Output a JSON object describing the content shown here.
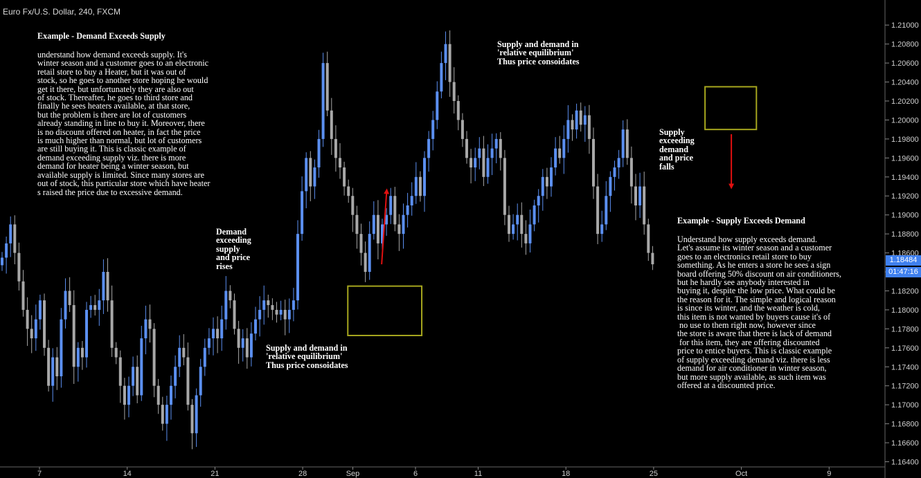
{
  "title": "Euro Fx/U.S. Dollar, 240, FXCM",
  "price_tag": {
    "price": "1.18484",
    "countdown": "01:47:16",
    "color": "#3f80ef"
  },
  "colors": {
    "up_candle": "#5b8ff0",
    "down_candle": "#a8a8a8",
    "box": "#a6a61e",
    "arrow": "#e01010",
    "background": "#000000"
  },
  "chart_data": {
    "type": "candlestick",
    "y_axis": {
      "min": 1.164,
      "max": 1.211,
      "side": "right",
      "ticks": [
        "1.21000",
        "1.20800",
        "1.20600",
        "1.20400",
        "1.20200",
        "1.20000",
        "1.19800",
        "1.19600",
        "1.19400",
        "1.19200",
        "1.19000",
        "1.18800",
        "1.18600",
        "1.18400",
        "1.18200",
        "1.18000",
        "1.17800",
        "1.17600",
        "1.17400",
        "1.17200",
        "1.17000",
        "1.16800",
        "1.16600",
        "1.16400"
      ]
    },
    "x_axis": {
      "labels": [
        {
          "text": "7",
          "day": 0
        },
        {
          "text": "14",
          "day": 7
        },
        {
          "text": "21",
          "day": 14
        },
        {
          "text": "28",
          "day": 21
        },
        {
          "text": "Sep",
          "day": 25
        },
        {
          "text": "6",
          "day": 30
        },
        {
          "text": "11",
          "day": 35
        },
        {
          "text": "18",
          "day": 42
        },
        {
          "text": "25",
          "day": 49
        },
        {
          "text": "Oct",
          "day": 56
        },
        {
          "text": "9",
          "day": 63
        }
      ]
    },
    "series_close": [
      [
        0,
        1.1855
      ],
      [
        1,
        1.187
      ],
      [
        2,
        1.189
      ],
      [
        3,
        1.186
      ],
      [
        4,
        1.183
      ],
      [
        5,
        1.18
      ],
      [
        6,
        1.178
      ],
      [
        7,
        1.177
      ],
      [
        8,
        1.179
      ],
      [
        9,
        1.181
      ],
      [
        10,
        1.176
      ],
      [
        11,
        1.172
      ],
      [
        12,
        1.175
      ],
      [
        13,
        1.173
      ],
      [
        14,
        1.179
      ],
      [
        15,
        1.182
      ],
      [
        16,
        1.1805
      ],
      [
        17,
        1.174
      ],
      [
        18,
        1.176
      ],
      [
        19,
        1.175
      ],
      [
        20,
        1.18
      ],
      [
        21,
        1.1805
      ],
      [
        22,
        1.18
      ],
      [
        23,
        1.181
      ],
      [
        24,
        1.184
      ],
      [
        25,
        1.181
      ],
      [
        26,
        1.176
      ],
      [
        27,
        1.175
      ],
      [
        28,
        1.172
      ],
      [
        29,
        1.17
      ],
      [
        30,
        1.172
      ],
      [
        31,
        1.174
      ],
      [
        32,
        1.171
      ],
      [
        33,
        1.177
      ],
      [
        34,
        1.179
      ],
      [
        35,
        1.178
      ],
      [
        36,
        1.172
      ],
      [
        37,
        1.17
      ],
      [
        38,
        1.168
      ],
      [
        39,
        1.17
      ],
      [
        40,
        1.172
      ],
      [
        41,
        1.174
      ],
      [
        42,
        1.176
      ],
      [
        43,
        1.175
      ],
      [
        44,
        1.17
      ],
      [
        45,
        1.167
      ],
      [
        46,
        1.171
      ],
      [
        47,
        1.174
      ],
      [
        48,
        1.176
      ],
      [
        49,
        1.177
      ],
      [
        50,
        1.178
      ],
      [
        51,
        1.177
      ],
      [
        52,
        1.179
      ],
      [
        53,
        1.182
      ],
      [
        54,
        1.181
      ],
      [
        55,
        1.178
      ],
      [
        56,
        1.176
      ],
      [
        57,
        1.177
      ],
      [
        58,
        1.175
      ],
      [
        59,
        1.1775
      ],
      [
        60,
        1.179
      ],
      [
        61,
        1.18
      ],
      [
        62,
        1.181
      ],
      [
        63,
        1.1805
      ],
      [
        64,
        1.18
      ],
      [
        65,
        1.1795
      ],
      [
        66,
        1.18
      ],
      [
        67,
        1.179
      ],
      [
        68,
        1.18
      ],
      [
        69,
        1.181
      ],
      [
        70,
        1.188
      ],
      [
        71,
        1.1925
      ],
      [
        72,
        1.196
      ],
      [
        73,
        1.193
      ],
      [
        74,
        1.195
      ],
      [
        75,
        1.198
      ],
      [
        76,
        1.206
      ],
      [
        77,
        1.201
      ],
      [
        78,
        1.198
      ],
      [
        79,
        1.196
      ],
      [
        80,
        1.195
      ],
      [
        81,
        1.193
      ],
      [
        82,
        1.192
      ],
      [
        83,
        1.19
      ],
      [
        84,
        1.188
      ],
      [
        85,
        1.186
      ],
      [
        86,
        1.184
      ],
      [
        87,
        1.188
      ],
      [
        88,
        1.19
      ],
      [
        89,
        1.187
      ],
      [
        90,
        1.189
      ],
      [
        91,
        1.19
      ],
      [
        92,
        1.192
      ],
      [
        93,
        1.189
      ],
      [
        94,
        1.188
      ],
      [
        95,
        1.19
      ],
      [
        96,
        1.191
      ],
      [
        97,
        1.192
      ],
      [
        98,
        1.194
      ],
      [
        99,
        1.192
      ],
      [
        100,
        1.196
      ],
      [
        101,
        1.198
      ],
      [
        102,
        1.2
      ],
      [
        103,
        1.203
      ],
      [
        104,
        1.206
      ],
      [
        105,
        1.208
      ],
      [
        106,
        1.204
      ],
      [
        107,
        1.202
      ],
      [
        108,
        1.2
      ],
      [
        109,
        1.198
      ],
      [
        110,
        1.196
      ],
      [
        111,
        1.195
      ],
      [
        112,
        1.196
      ],
      [
        113,
        1.197
      ],
      [
        114,
        1.194
      ],
      [
        115,
        1.196
      ],
      [
        116,
        1.197
      ],
      [
        117,
        1.198
      ],
      [
        118,
        1.196
      ],
      [
        119,
        1.19
      ],
      [
        120,
        1.188
      ],
      [
        121,
        1.189
      ],
      [
        122,
        1.19
      ],
      [
        123,
        1.188
      ],
      [
        124,
        1.187
      ],
      [
        125,
        1.189
      ],
      [
        126,
        1.191
      ],
      [
        127,
        1.192
      ],
      [
        128,
        1.194
      ],
      [
        129,
        1.193
      ],
      [
        130,
        1.195
      ],
      [
        131,
        1.197
      ],
      [
        132,
        1.196
      ],
      [
        133,
        1.198
      ],
      [
        134,
        1.2
      ],
      [
        135,
        1.199
      ],
      [
        136,
        1.201
      ],
      [
        137,
        1.1995
      ],
      [
        138,
        1.2005
      ],
      [
        139,
        1.198
      ],
      [
        140,
        1.193
      ],
      [
        141,
        1.188
      ],
      [
        142,
        1.189
      ],
      [
        143,
        1.192
      ],
      [
        144,
        1.194
      ],
      [
        145,
        1.195
      ],
      [
        146,
        1.196
      ],
      [
        147,
        1.199
      ],
      [
        148,
        1.196
      ],
      [
        149,
        1.193
      ],
      [
        150,
        1.191
      ],
      [
        151,
        1.193
      ],
      [
        152,
        1.189
      ],
      [
        153,
        1.186
      ],
      [
        154,
        1.1848
      ]
    ],
    "annotations": [
      {
        "kind": "box",
        "day_start": 24.6,
        "day_end": 30.5,
        "price_low": 1.1773,
        "price_high": 1.1825
      },
      {
        "kind": "box",
        "day_start": 53.1,
        "day_end": 57.2,
        "price_low": 1.199,
        "price_high": 1.2035
      },
      {
        "kind": "arrow",
        "day_start": 27.3,
        "day_end": 27.7,
        "price_start": 1.1848,
        "price_end": 1.1925
      },
      {
        "kind": "arrow",
        "day_start": 55.2,
        "day_end": 55.2,
        "price_start": 1.1985,
        "price_end": 1.193
      }
    ]
  },
  "notes": {
    "demand_title": "Example - Demand Exceeds Supply",
    "demand_body": "understand how demand exceeds supply. It's\nwinter season and a customer goes to an electronic\nretail store to buy a Heater, but it was out of\nstock, so he goes to another store hoping he would\nget it there, but unfortunately they are also out\nof stock. Thereafter, he goes to third store and\nfinally he sees heaters available, at that store,\nbut the problem is there are lot of customers\nalready standing in line to buy it. Moreover, there\nis no discount offered on heater, in fact the price\nis much higher than normal, but lot of customers\nare still buying it. This is classic example of\ndemand exceeding supply viz. there is more\ndemand for heater being a winter season, but\navailable supply is limited. Since many stores are\nout of stock, this particular store which have heater\ns raised the price due to excessive demand.",
    "demand_rises": "Demand\nexceeding\nsupply\nand price\nrises",
    "equilibrium_low": "Supply and demand in\n'relative equilibrium'\nThus price consoidates",
    "equilibrium_high": "Supply and demand in\n'relative equilibrium'\nThus price consoidates",
    "supply_falls": "Supply\nexceeding\ndemand\nand price\nfalls",
    "supply_title": "Example - Supply Exceeds Demand",
    "supply_body": "Understand how supply exceeds demand.\nLet's assume its winter season and a customer\ngoes to an electronics retail store to buy\nsomething. As he enters a store he sees a sign\nboard offering 50% discount on air conditioners,\nbut he hardly see anybody interested in\nbuying it, despite the low price. What could be\nthe reason for it. The simple and logical reason\nis since its winter, and the weather is cold,\nthis item is not wanted by buyers cause it's of\n no use to them right now, however since\nthe store is aware that there is lack of demand\n for this item, they are offering discounted\nprice to entice buyers. This is classic example\nof supply exceeding demand viz. there is less\ndemand for air conditioner in winter season,\nbut more supply available, as such item was\noffered at a discounted price."
  }
}
